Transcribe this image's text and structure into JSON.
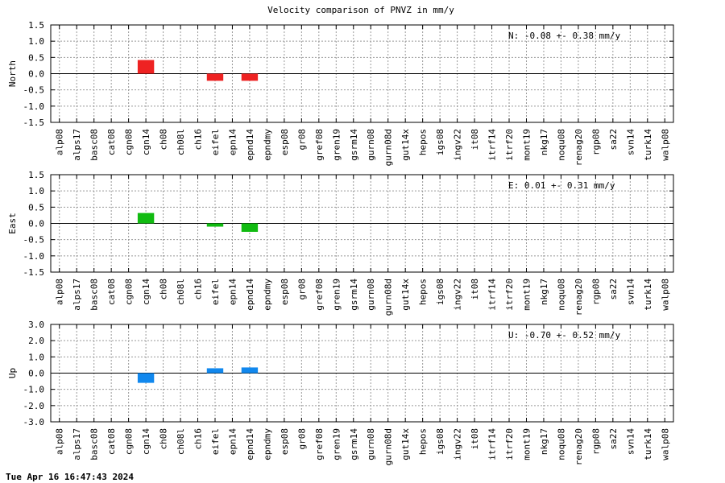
{
  "chart_data": {
    "type": "bar",
    "title": "Velocity comparison of PNVZ in mm/y",
    "timestamp": "Tue Apr 16 16:47:43 2024",
    "categories": [
      "alp08",
      "alps17",
      "basc08",
      "cat08",
      "cgn08",
      "cgn14",
      "ch08",
      "ch08l",
      "ch16",
      "eifel",
      "epn14",
      "epnd14",
      "epndmy",
      "esp08",
      "gr08",
      "gref08",
      "gren19",
      "gsrm14",
      "gurn08",
      "gurn08d",
      "gut14x",
      "hepos",
      "igs08",
      "ingv22",
      "it08",
      "itrf14",
      "itrf20",
      "mont19",
      "nkg17",
      "noqu08",
      "renag20",
      "rgp08",
      "sa22",
      "svn14",
      "turk14",
      "walp08"
    ],
    "grid": true,
    "panels": [
      {
        "ylabel": "North",
        "color": "#ee2222",
        "ylim": [
          -1.5,
          1.5
        ],
        "yticks": [
          "1.5",
          "1.0",
          "0.5",
          "0.0",
          "-0.5",
          "-1.0",
          "-1.5"
        ],
        "yticks_values": [
          1.5,
          1.0,
          0.5,
          0.0,
          -0.5,
          -1.0,
          -1.5
        ],
        "annotation": "N:  -0.08 +-  0.38 mm/y",
        "bars": [
          {
            "category": "cgn14",
            "value": 0.42
          },
          {
            "category": "eifel",
            "value": -0.22
          },
          {
            "category": "epnd14",
            "value": -0.22
          }
        ]
      },
      {
        "ylabel": "East",
        "color": "#11bb11",
        "ylim": [
          -1.5,
          1.5
        ],
        "yticks": [
          "1.5",
          "1.0",
          "0.5",
          "0.0",
          "-0.5",
          "-1.0",
          "-1.5"
        ],
        "yticks_values": [
          1.5,
          1.0,
          0.5,
          0.0,
          -0.5,
          -1.0,
          -1.5
        ],
        "annotation": "E:   0.01 +-  0.31 mm/y",
        "bars": [
          {
            "category": "cgn14",
            "value": 0.32
          },
          {
            "category": "eifel",
            "value": -0.1
          },
          {
            "category": "epnd14",
            "value": -0.26
          }
        ]
      },
      {
        "ylabel": "Up",
        "color": "#1188ee",
        "ylim": [
          -3.0,
          3.0
        ],
        "yticks": [
          "3.0",
          "2.0",
          "1.0",
          "0.0",
          "-1.0",
          "-2.0",
          "-3.0"
        ],
        "yticks_values": [
          3.0,
          2.0,
          1.0,
          0.0,
          -1.0,
          -2.0,
          -3.0
        ],
        "annotation": "U:  -0.70 +-  0.52 mm/y",
        "bars": [
          {
            "category": "cgn14",
            "value": -0.6
          },
          {
            "category": "eifel",
            "value": 0.3
          },
          {
            "category": "epnd14",
            "value": 0.35
          }
        ]
      }
    ]
  }
}
